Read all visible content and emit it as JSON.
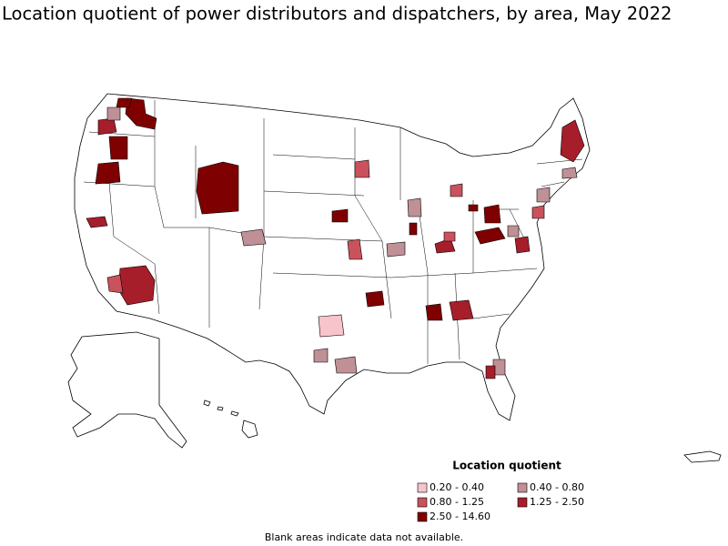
{
  "title": "Location quotient of power distributors and dispatchers, by area, May 2022",
  "legend": {
    "title": "Location quotient",
    "items": [
      {
        "label": "0.20 - 0.40",
        "color": "#f8c4cc"
      },
      {
        "label": "0.40 - 0.80",
        "color": "#bf9096"
      },
      {
        "label": "0.80 - 1.25",
        "color": "#c9525c"
      },
      {
        "label": "1.25 - 2.50",
        "color": "#a61e2a"
      },
      {
        "label": "2.50 - 14.60",
        "color": "#7f0000"
      }
    ]
  },
  "footnote": "Blank areas indicate data not available."
}
